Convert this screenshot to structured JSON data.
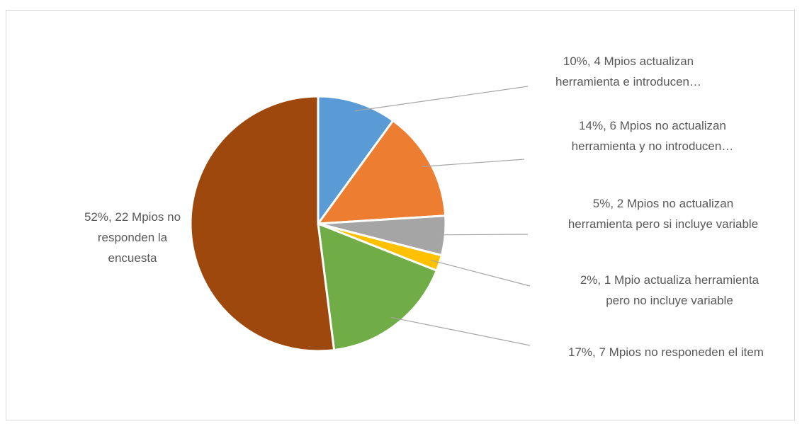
{
  "chart_data": {
    "type": "pie",
    "title": "",
    "slices": [
      {
        "value": 10,
        "label_lines": [
          "10%, 4 Mpios actualizan",
          "herramienta e introducen…"
        ],
        "color": "#5b9bd5"
      },
      {
        "value": 14,
        "label_lines": [
          "14%, 6 Mpios no actualizan",
          "herramienta y no introducen…"
        ],
        "color": "#ed7d31"
      },
      {
        "value": 5,
        "label_lines": [
          "5%, 2 Mpios no actualizan",
          "herramienta pero si incluye variable"
        ],
        "color": "#a5a5a5"
      },
      {
        "value": 2,
        "label_lines": [
          "2%, 1 Mpio actualiza herramienta",
          "pero no incluye variable"
        ],
        "color": "#ffc000"
      },
      {
        "value": 17,
        "label_lines": [
          "17%, 7 Mpios no responeden el item"
        ],
        "color": "#70ad47"
      },
      {
        "value": 52,
        "label_lines": [
          "52%, 22 Mpios no",
          "responden la",
          "encuesta"
        ],
        "color": "#9e480e"
      }
    ],
    "start_angle_deg": 0,
    "direction": "clockwise",
    "legend": "none"
  }
}
